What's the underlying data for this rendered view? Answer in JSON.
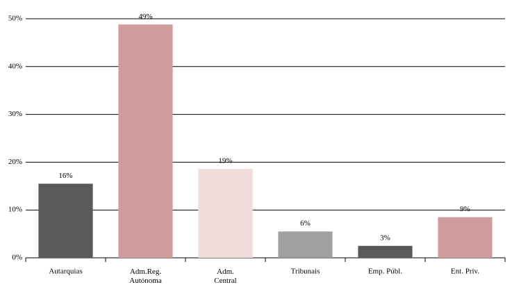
{
  "chart_data": {
    "type": "bar",
    "categories": [
      "Autarquias",
      "Adm.Reg.\nAutónoma",
      "Adm.\nCentral",
      "Tribunais",
      "Emp. Públ.",
      "Ent. Priv."
    ],
    "values": [
      15.5,
      48.8,
      18.6,
      5.5,
      2.5,
      8.5
    ],
    "value_labels": [
      "16%",
      "49%",
      "19%",
      "6%",
      "3%",
      "9%"
    ],
    "colors": [
      "#595959",
      "#d09b9b",
      "#f1dcdc",
      "#a0a0a0",
      "#595959",
      "#d09b9b"
    ],
    "ylim": [
      0,
      50
    ],
    "yticks": [
      {
        "value": 0,
        "label": "0%"
      },
      {
        "value": 10,
        "label": "10%"
      },
      {
        "value": 20,
        "label": "20%"
      },
      {
        "value": 30,
        "label": "30%"
      },
      {
        "value": 40,
        "label": "40%"
      },
      {
        "value": 50,
        "label": "50%"
      }
    ],
    "grid": true
  }
}
